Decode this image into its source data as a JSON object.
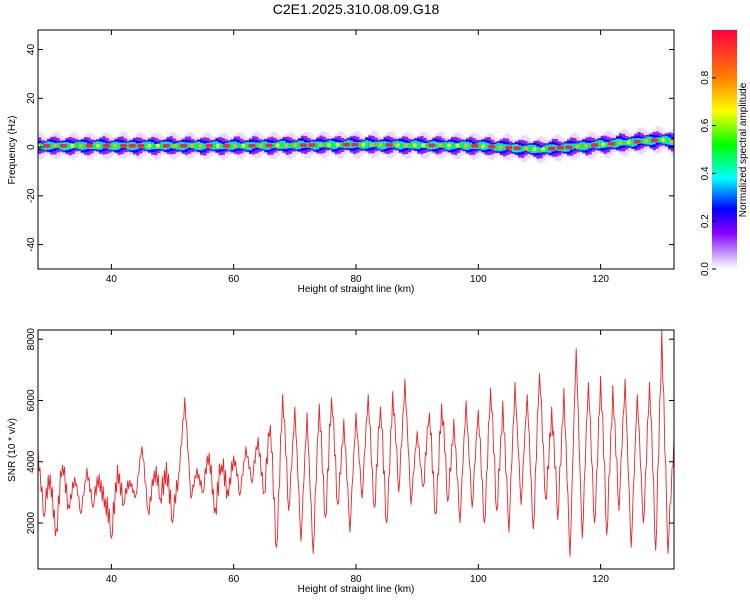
{
  "title": "C2E1.2025.310.08.09.G18",
  "chart_data": [
    {
      "type": "heatmap",
      "xlabel": "Height of straight line (km)",
      "ylabel": "Frequency (Hz)",
      "xlim": [
        28,
        132
      ],
      "ylim": [
        -50,
        48
      ],
      "xticks": [
        40,
        60,
        80,
        100,
        120
      ],
      "yticks": [
        -40,
        -20,
        0,
        20,
        40
      ],
      "ridge": {
        "x": [
          28,
          40,
          60,
          80,
          100,
          110,
          120,
          125,
          130,
          132
        ],
        "freq_hz": [
          0.5,
          0.5,
          0.5,
          1.0,
          0.5,
          -1.0,
          1.0,
          2.0,
          3.0,
          2.0
        ]
      },
      "colorbar": {
        "label": "Normalized spectral amplitude",
        "range": [
          0,
          1
        ],
        "ticks": [
          0.0,
          0.2,
          0.4,
          0.6,
          0.8
        ],
        "colors": [
          "#ffffff",
          "#c8a0ff",
          "#8a00ff",
          "#0000ff",
          "#00ffff",
          "#00ff00",
          "#ffff00",
          "#ff8000",
          "#ff0040"
        ]
      }
    },
    {
      "type": "line",
      "xlabel": "Height of straight line (km)",
      "ylabel": "SNR (10 * v/v)",
      "xlim": [
        28,
        132
      ],
      "ylim": [
        500,
        8300
      ],
      "xticks": [
        40,
        60,
        80,
        100,
        120
      ],
      "yticks": [
        2000,
        4000,
        6000,
        8000
      ],
      "color": "#e8262a",
      "series": [
        {
          "x": [
            28,
            29,
            30,
            31,
            32,
            33,
            34,
            35,
            36,
            37,
            38,
            39,
            40,
            41,
            42,
            43,
            44,
            45,
            46,
            47,
            48,
            49,
            50,
            51,
            52,
            53,
            54,
            55,
            56,
            57,
            58,
            59,
            60,
            61,
            62,
            63,
            64,
            65,
            66,
            67,
            68,
            69,
            70,
            71,
            72,
            73,
            74,
            75,
            76,
            77,
            78,
            79,
            80,
            81,
            82,
            83,
            84,
            85,
            86,
            87,
            88,
            89,
            90,
            91,
            92,
            93,
            94,
            95,
            96,
            97,
            98,
            99,
            100,
            101,
            102,
            103,
            104,
            105,
            106,
            107,
            108,
            109,
            110,
            111,
            112,
            113,
            114,
            115,
            116,
            117,
            118,
            119,
            120,
            121,
            122,
            123,
            124,
            125,
            126,
            127,
            128,
            129,
            130,
            131,
            132
          ],
          "values": [
            4400,
            2200,
            3600,
            1800,
            3900,
            2600,
            3500,
            2300,
            3800,
            2500,
            3600,
            2800,
            1500,
            3900,
            2600,
            3400,
            2900,
            4500,
            2400,
            3700,
            2800,
            4000,
            2000,
            3600,
            6100,
            2800,
            3800,
            3000,
            4300,
            2500,
            3900,
            3100,
            4200,
            2900,
            4500,
            3300,
            4800,
            3000,
            5200,
            1200,
            6200,
            2400,
            5800,
            1400,
            5600,
            1000,
            5900,
            2200,
            6100,
            2600,
            5400,
            1700,
            5600,
            2800,
            6200,
            2500,
            5800,
            2000,
            6300,
            3000,
            6700,
            2600,
            5000,
            3200,
            5600,
            2300,
            5900,
            2700,
            5400,
            2000,
            6000,
            2500,
            5700,
            2000,
            6400,
            2400,
            6000,
            1700,
            6600,
            2600,
            6200,
            1800,
            6900,
            2800,
            5800,
            2100,
            6400,
            900,
            7700,
            1500,
            6600,
            2000,
            6800,
            1600,
            6500,
            2400,
            6700,
            1200,
            6200,
            2000,
            6600,
            1100,
            8300,
            1000,
            4800
          ]
        }
      ]
    }
  ]
}
